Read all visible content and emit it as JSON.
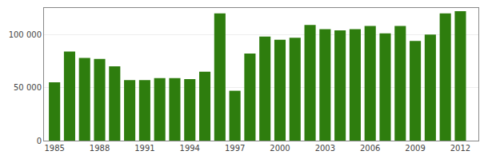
{
  "chart_data": {
    "type": "bar",
    "x": [
      1985,
      1986,
      1987,
      1988,
      1989,
      1990,
      1991,
      1992,
      1993,
      1994,
      1995,
      1996,
      1997,
      1998,
      1999,
      2000,
      2001,
      2002,
      2003,
      2004,
      2005,
      2006,
      2007,
      2008,
      2009,
      2010,
      2011,
      2012
    ],
    "values": [
      55000,
      84000,
      78000,
      77000,
      70000,
      57000,
      57000,
      59000,
      59000,
      58000,
      65000,
      120000,
      47000,
      82000,
      98000,
      95000,
      97000,
      109000,
      105000,
      104000,
      105000,
      108000,
      101000,
      108000,
      94000,
      100000,
      120000,
      122000
    ],
    "color": "#2e7d0e",
    "xlim": [
      1984.3,
      2013.2
    ],
    "xticks": [
      1985,
      1988,
      1991,
      1994,
      1997,
      2000,
      2003,
      2006,
      2009,
      2012
    ],
    "ylim": [
      0,
      125000
    ],
    "yticks": [
      0,
      {
        "value": 50000,
        "label": "50 000"
      },
      {
        "value": 100000,
        "label": "100 000"
      }
    ],
    "grid": true
  }
}
